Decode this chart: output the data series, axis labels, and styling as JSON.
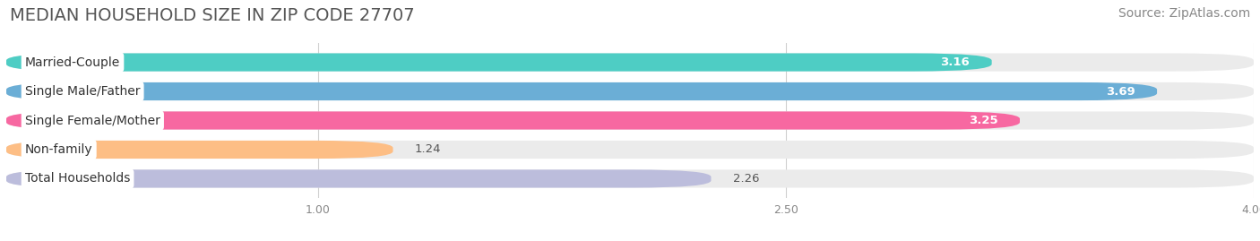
{
  "title": "MEDIAN HOUSEHOLD SIZE IN ZIP CODE 27707",
  "source": "Source: ZipAtlas.com",
  "categories": [
    "Married-Couple",
    "Single Male/Father",
    "Single Female/Mother",
    "Non-family",
    "Total Households"
  ],
  "values": [
    3.16,
    3.69,
    3.25,
    1.24,
    2.26
  ],
  "bar_colors": [
    "#4ecdc4",
    "#6baed6",
    "#f768a1",
    "#fdbe85",
    "#bcbddc"
  ],
  "value_colors": [
    "white",
    "white",
    "white",
    "#7a5c00",
    "#5a4a7a"
  ],
  "xlim_start": 0.0,
  "xlim_end": 4.0,
  "xticks": [
    1.0,
    2.5,
    4.0
  ],
  "background_color": "#ffffff",
  "bar_bg_color": "#ebebeb",
  "title_fontsize": 14,
  "source_fontsize": 10,
  "label_fontsize": 10,
  "value_fontsize": 9.5
}
